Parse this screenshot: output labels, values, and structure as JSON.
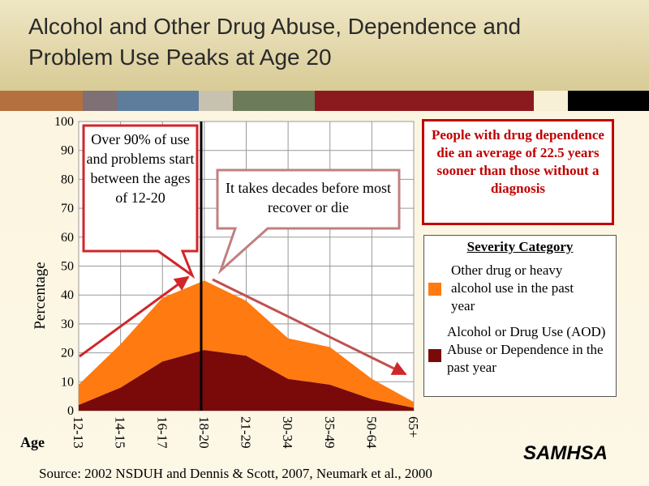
{
  "title": "Alcohol and Other Drug Abuse, Dependence and Problem Use Peaks at Age 20",
  "chart_data": {
    "type": "stacked_area",
    "categories": [
      "12-13",
      "14-15",
      "16-17",
      "18-20",
      "21-29",
      "30-34",
      "35-49",
      "50-64",
      "65+"
    ],
    "series": [
      {
        "name": "Alcohol or Drug Use (AOD) Abuse or Dependence in the past year",
        "color": "#7a0a0a",
        "values": [
          2,
          8,
          17,
          21,
          19,
          11,
          9,
          4,
          1
        ]
      },
      {
        "name": "Other drug or heavy alcohol use in the past year",
        "color": "#ff7a10",
        "values": [
          7,
          15,
          22,
          24,
          19,
          14,
          13,
          7,
          2
        ]
      }
    ],
    "ylim": [
      0,
      100
    ],
    "yticks": [
      0,
      10,
      20,
      30,
      40,
      50,
      60,
      70,
      80,
      90,
      100
    ],
    "grid": true,
    "y_label": "Percentage",
    "x_label": "Age",
    "legend_title": "Severity Category",
    "annotations": [
      "Over 90% of use and problems start between the ages of 12-20",
      "It takes decades before most recover or die"
    ]
  },
  "callout": "People with drug dependence die an average of 22.5 years sooner than those without a diagnosis",
  "source": "Source: 2002 NSDUH and Dennis & Scott, 2007, Neumark et al., 2000",
  "logo": "SAMHSA"
}
